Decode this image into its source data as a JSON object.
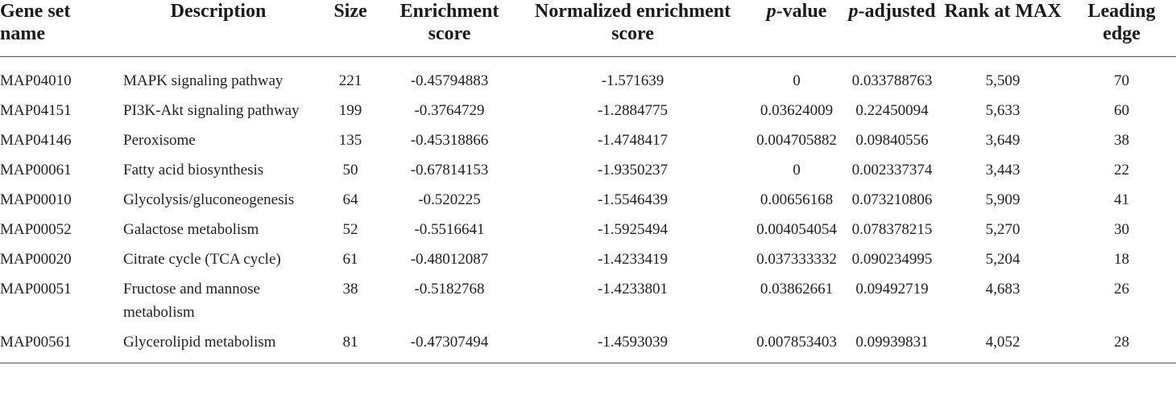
{
  "table": {
    "headers": {
      "gene_set_name": "Gene set name",
      "description": "Description",
      "size": "Size",
      "enrichment_score": "Enrichment score",
      "normalized_enrichment_score": "Normalized enrichment score",
      "p_value_italic": "p",
      "p_value_rest": "-value",
      "p_adjusted_italic": "p",
      "p_adjusted_rest": "-adjusted",
      "rank_at_max": "Rank at MAX",
      "leading_edge": "Leading edge"
    },
    "rows": [
      {
        "name": "MAP04010",
        "description": "MAPK signaling pathway",
        "size": "221",
        "es": "-0.45794883",
        "nes": "-1.571639",
        "p": "0",
        "padj": "0.033788763",
        "rank": "5,509",
        "edge": "70"
      },
      {
        "name": "MAP04151",
        "description": "PI3K-Akt signaling pathway",
        "size": "199",
        "es": "-0.3764729",
        "nes": "-1.2884775",
        "p": "0.03624009",
        "padj": "0.22450094",
        "rank": "5,633",
        "edge": "60"
      },
      {
        "name": "MAP04146",
        "description": "Peroxisome",
        "size": "135",
        "es": "-0.45318866",
        "nes": "-1.4748417",
        "p": "0.004705882",
        "padj": "0.09840556",
        "rank": "3,649",
        "edge": "38"
      },
      {
        "name": "MAP00061",
        "description": "Fatty acid biosynthesis",
        "size": "50",
        "es": "-0.67814153",
        "nes": "-1.9350237",
        "p": "0",
        "padj": "0.002337374",
        "rank": "3,443",
        "edge": "22"
      },
      {
        "name": "MAP00010",
        "description": "Glycolysis/gluconeogenesis",
        "size": "64",
        "es": "-0.520225",
        "nes": "-1.5546439",
        "p": "0.00656168",
        "padj": "0.073210806",
        "rank": "5,909",
        "edge": "41"
      },
      {
        "name": "MAP00052",
        "description": "Galactose metabolism",
        "size": "52",
        "es": "-0.5516641",
        "nes": "-1.5925494",
        "p": "0.004054054",
        "padj": "0.078378215",
        "rank": "5,270",
        "edge": "30"
      },
      {
        "name": "MAP00020",
        "description": "Citrate cycle (TCA cycle)",
        "size": "61",
        "es": "-0.48012087",
        "nes": "-1.4233419",
        "p": "0.037333332",
        "padj": "0.090234995",
        "rank": "5,204",
        "edge": "18"
      },
      {
        "name": "MAP00051",
        "description": "Fructose and mannose metabolism",
        "size": "38",
        "es": "-0.5182768",
        "nes": "-1.4233801",
        "p": "0.03862661",
        "padj": "0.09492719",
        "rank": "4,683",
        "edge": "26"
      },
      {
        "name": "MAP00561",
        "description": "Glycerolipid metabolism",
        "size": "81",
        "es": "-0.47307494",
        "nes": "-1.4593039",
        "p": "0.007853403",
        "padj": "0.09939831",
        "rank": "4,052",
        "edge": "28"
      }
    ]
  }
}
